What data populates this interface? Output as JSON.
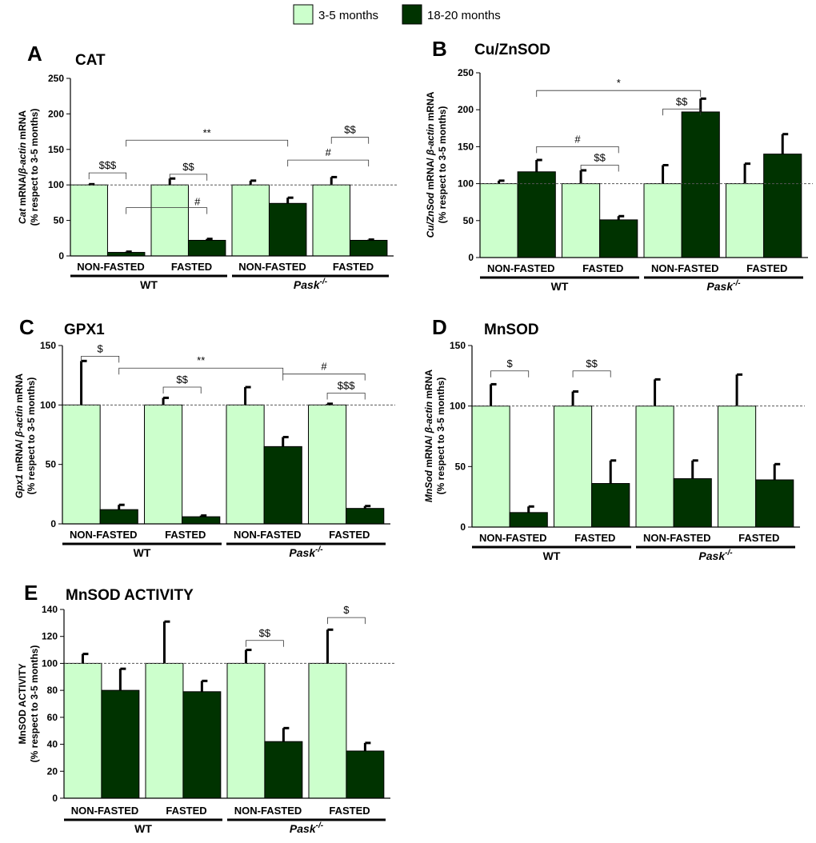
{
  "colors": {
    "young": "#ccffcc",
    "old": "#003300",
    "axis": "#000000",
    "ref": "#555555"
  },
  "legend": [
    {
      "label": "3-5 months",
      "color": "#ccffcc"
    },
    {
      "label": "18-20 months",
      "color": "#003300"
    }
  ],
  "chart_data": [
    {
      "type": "bar",
      "panel_letter": "A",
      "title": "CAT",
      "ylabel_line1_italic": "Cat",
      "ylabel_line1_mid": " mRNA/",
      "ylabel_line1_italic2": "β-actin",
      "ylabel_line1_tail": " mRNA",
      "ylabel_line2": "(% respect  to 3-5 months)",
      "ylim": [
        0,
        250
      ],
      "yticks": [
        "0",
        "50",
        "100",
        "150",
        "200",
        "250"
      ],
      "groups": [
        "NON-FASTED",
        "FASTED",
        "NON-FASTED",
        "FASTED"
      ],
      "genotypes": [
        {
          "label": "WT",
          "italic": false,
          "sup": ""
        },
        {
          "label": "Pask",
          "italic": true,
          "sup": "-/-"
        }
      ],
      "reference_line": 100,
      "series": [
        {
          "name": "3-5 months",
          "values": [
            100,
            100,
            100,
            100
          ],
          "errors": [
            1,
            9,
            6,
            11
          ]
        },
        {
          "name": "18-20 months",
          "values": [
            5,
            22,
            74,
            22
          ],
          "errors": [
            1,
            2,
            8,
            1
          ]
        }
      ],
      "annotations": [
        {
          "text": "$$$",
          "from": [
            0,
            0
          ],
          "to": [
            0,
            1
          ],
          "y": 117,
          "style": "bracket"
        },
        {
          "text": "$$",
          "from": [
            1,
            0
          ],
          "to": [
            1,
            1
          ],
          "y": 115,
          "style": "bracket"
        },
        {
          "text": "$$",
          "from": [
            3,
            0
          ],
          "to": [
            3,
            1
          ],
          "y": 167,
          "style": "bracket"
        },
        {
          "text": "**",
          "from": [
            0,
            1
          ],
          "to": [
            2,
            1
          ],
          "y": 163,
          "style": "bracket"
        },
        {
          "text": "#",
          "from": [
            2,
            1
          ],
          "to": [
            3,
            1
          ],
          "y": 135,
          "style": "bracket"
        },
        {
          "text": "#",
          "from": [
            0,
            1
          ],
          "to": [
            1,
            1
          ],
          "y": 68,
          "style": "line"
        }
      ]
    },
    {
      "type": "bar",
      "panel_letter": "B",
      "title": "Cu/ZnSOD",
      "ylabel_line1_italic": "Cu/ZnSod",
      "ylabel_line1_mid": " mRNA/ ",
      "ylabel_line1_italic2": "β-actin",
      "ylabel_line1_tail": " mRNA",
      "ylabel_line2": "(% respect  to 3-5 months)",
      "ylim": [
        0,
        250
      ],
      "yticks": [
        "0",
        "50",
        "100",
        "150",
        "200",
        "250"
      ],
      "groups": [
        "NON-FASTED",
        "FASTED",
        "NON-FASTED",
        "FASTED"
      ],
      "genotypes": [
        {
          "label": "WT",
          "italic": false,
          "sup": ""
        },
        {
          "label": "Pask",
          "italic": true,
          "sup": "-/-"
        }
      ],
      "reference_line": 100,
      "series": [
        {
          "name": "3-5 months",
          "values": [
            100,
            100,
            100,
            100
          ],
          "errors": [
            4,
            18,
            25,
            27
          ]
        },
        {
          "name": "18-20 months",
          "values": [
            116,
            51,
            197,
            140
          ],
          "errors": [
            16,
            5,
            18,
            27
          ]
        }
      ],
      "annotations": [
        {
          "text": "*",
          "from": [
            0,
            1
          ],
          "to": [
            2,
            1
          ],
          "y": 226,
          "style": "bracket"
        },
        {
          "text": "$$",
          "from": [
            2,
            0
          ],
          "to": [
            2,
            1
          ],
          "y": 201,
          "style": "bracket"
        },
        {
          "text": "#",
          "from": [
            0,
            1
          ],
          "to": [
            1,
            1
          ],
          "y": 150,
          "style": "bracket"
        },
        {
          "text": "$$",
          "from": [
            1,
            0
          ],
          "to": [
            1,
            1
          ],
          "y": 125,
          "style": "bracket"
        }
      ]
    },
    {
      "type": "bar",
      "panel_letter": "C",
      "title": "GPX1",
      "ylabel_line1_italic": "Gpx1",
      "ylabel_line1_mid": " mRNA/ ",
      "ylabel_line1_italic2": "β-actin",
      "ylabel_line1_tail": " mRNA",
      "ylabel_line2": "(% respect  to 3-5 months)",
      "ylim": [
        0,
        150
      ],
      "yticks": [
        "0",
        "50",
        "100",
        "150"
      ],
      "groups": [
        "NON-FASTED",
        "FASTED",
        "NON-FASTED",
        "FASTED"
      ],
      "genotypes": [
        {
          "label": "WT",
          "italic": false,
          "sup": ""
        },
        {
          "label": "Pask",
          "italic": true,
          "sup": "-/-"
        }
      ],
      "reference_line": 100,
      "series": [
        {
          "name": "3-5 months",
          "values": [
            100,
            100,
            100,
            100
          ],
          "errors": [
            37,
            6,
            15,
            1
          ]
        },
        {
          "name": "18-20 months",
          "values": [
            12,
            6,
            65,
            13
          ],
          "errors": [
            4,
            1,
            8,
            2
          ]
        }
      ],
      "annotations": [
        {
          "text": "$",
          "from": [
            0,
            0
          ],
          "to": [
            0,
            1
          ],
          "y": 141,
          "style": "bracket"
        },
        {
          "text": "**",
          "from": [
            0,
            1
          ],
          "to": [
            2,
            1
          ],
          "y": 131,
          "style": "bracket"
        },
        {
          "text": "$$",
          "from": [
            1,
            0
          ],
          "to": [
            1,
            1
          ],
          "y": 115,
          "style": "bracket"
        },
        {
          "text": "#",
          "from": [
            2,
            1
          ],
          "to": [
            3,
            1
          ],
          "y": 126,
          "style": "bracket"
        },
        {
          "text": "$$$",
          "from": [
            3,
            0
          ],
          "to": [
            3,
            1
          ],
          "y": 110,
          "style": "bracket"
        }
      ]
    },
    {
      "type": "bar",
      "panel_letter": "D",
      "title": "MnSOD",
      "ylabel_line1_italic": "MnSod",
      "ylabel_line1_mid": " mRNA/ ",
      "ylabel_line1_italic2": "β-actin",
      "ylabel_line1_tail": " mRNA",
      "ylabel_line2": "(% respect  to 3-5 months)",
      "ylim": [
        0,
        150
      ],
      "yticks": [
        "0",
        "50",
        "100",
        "150"
      ],
      "groups": [
        "NON-FASTED",
        "FASTED",
        "NON-FASTED",
        "FASTED"
      ],
      "genotypes": [
        {
          "label": "WT",
          "italic": false,
          "sup": ""
        },
        {
          "label": "Pask",
          "italic": true,
          "sup": "-/-"
        }
      ],
      "reference_line": 100,
      "series": [
        {
          "name": "3-5 months",
          "values": [
            100,
            100,
            100,
            100
          ],
          "errors": [
            18,
            12,
            22,
            26
          ]
        },
        {
          "name": "18-20 months",
          "values": [
            12,
            36,
            40,
            39
          ],
          "errors": [
            5,
            19,
            15,
            13
          ]
        }
      ],
      "annotations": [
        {
          "text": "$",
          "from": [
            0,
            0
          ],
          "to": [
            0,
            1
          ],
          "y": 129,
          "style": "bracket"
        },
        {
          "text": "$$",
          "from": [
            1,
            0
          ],
          "to": [
            1,
            1
          ],
          "y": 129,
          "style": "bracket"
        }
      ]
    },
    {
      "type": "bar",
      "panel_letter": "E",
      "title": "MnSOD ACTIVITY",
      "ylabel_line1_italic": "",
      "ylabel_line1_mid": "MnSOD ACTIVITY",
      "ylabel_line1_italic2": "",
      "ylabel_line1_tail": "",
      "ylabel_line2": "(% respect  to 3-5 months)",
      "ylim": [
        0,
        140
      ],
      "yticks": [
        "0",
        "20",
        "40",
        "60",
        "80",
        "100",
        "120",
        "140"
      ],
      "groups": [
        "NON-FASTED",
        "FASTED",
        "NON-FASTED",
        "FASTED"
      ],
      "genotypes": [
        {
          "label": "WT",
          "italic": false,
          "sup": ""
        },
        {
          "label": "Pask",
          "italic": true,
          "sup": "-/-"
        }
      ],
      "reference_line": 100,
      "series": [
        {
          "name": "3-5 months",
          "values": [
            100,
            100,
            100,
            100
          ],
          "errors": [
            7,
            31,
            10,
            25
          ]
        },
        {
          "name": "18-20 months",
          "values": [
            80,
            79,
            42,
            35
          ],
          "errors": [
            16,
            8,
            10,
            6
          ]
        }
      ],
      "annotations": [
        {
          "text": "$$",
          "from": [
            2,
            0
          ],
          "to": [
            2,
            1
          ],
          "y": 117,
          "style": "bracket"
        },
        {
          "text": "$",
          "from": [
            3,
            0
          ],
          "to": [
            3,
            1
          ],
          "y": 134,
          "style": "bracket"
        }
      ]
    }
  ]
}
